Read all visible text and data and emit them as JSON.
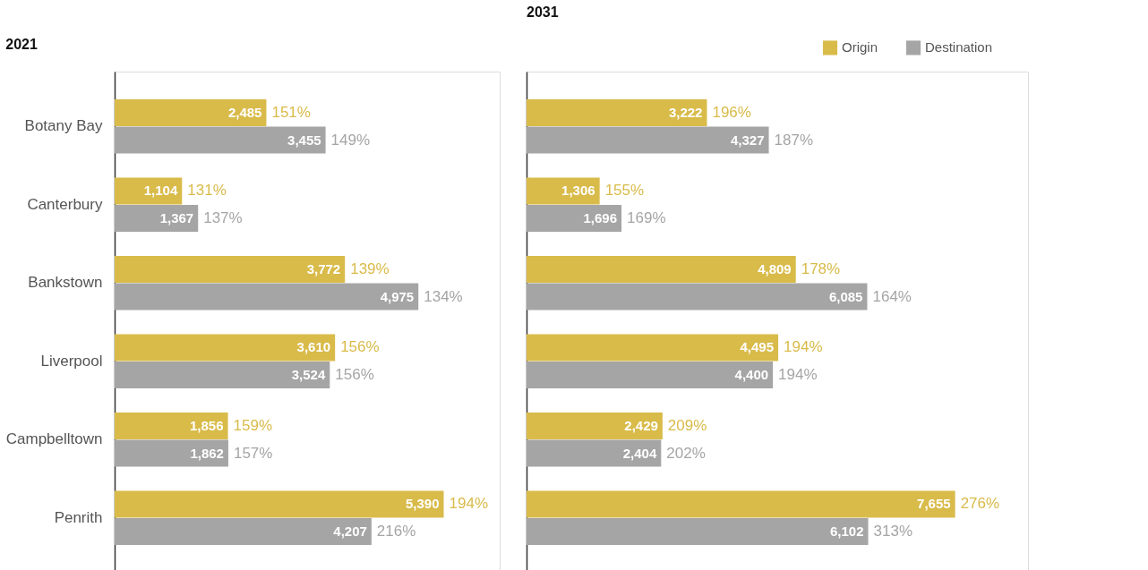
{
  "chart_data": [
    {
      "type": "bar",
      "orientation": "horizontal",
      "title": "2021",
      "categories": [
        "Botany Bay",
        "Canterbury",
        "Bankstown",
        "Liverpool",
        "Campbelltown",
        "Penrith"
      ],
      "series": [
        {
          "color": "#d9bb4a",
          "values": [
            2485,
            1104,
            3772,
            3610,
            1856,
            5390
          ],
          "value_labels": [
            "2,485",
            "1,104",
            "3,772",
            "3,610",
            "1,856",
            "5,390"
          ]
        },
        {
          "color": "#a5a5a5",
          "values": [
            3455,
            1367,
            4975,
            3524,
            1862,
            4207
          ],
          "value_labels": [
            "3,455",
            "1,367",
            "4,975",
            "3,524",
            "1,862",
            "4,207"
          ]
        }
      ],
      "annotations": [
        {
          "text": "151%",
          "x": 2485,
          "y": "Botany Bay"
        },
        {
          "text": "149%",
          "x": 3455,
          "y": "Botany Bay"
        },
        {
          "text": "131%",
          "x": 1104,
          "y": "Canterbury"
        },
        {
          "text": "137%",
          "x": 1367,
          "y": "Canterbury"
        },
        {
          "text": "139%",
          "x": 3772,
          "y": "Bankstown"
        },
        {
          "text": "134%",
          "x": 4975,
          "y": "Bankstown"
        },
        {
          "text": "156%",
          "x": 3610,
          "y": "Liverpool"
        },
        {
          "text": "156%",
          "x": 3524,
          "y": "Liverpool"
        },
        {
          "text": "159%",
          "x": 1856,
          "y": "Campbelltown"
        },
        {
          "text": "157%",
          "x": 1862,
          "y": "Campbelltown"
        },
        {
          "text": "194%",
          "x": 5390,
          "y": "Penrith"
        },
        {
          "text": "216%",
          "x": 4207,
          "y": "Penrith"
        }
      ],
      "tick_labels": "y",
      "grid": false,
      "legend": false
    },
    {
      "type": "bar",
      "orientation": "horizontal",
      "title": "2031",
      "categories": [
        "Botany Bay",
        "Canterbury",
        "Bankstown",
        "Liverpool",
        "Campbelltown",
        "Penrith"
      ],
      "series": [
        {
          "name": "Origin",
          "color": "#d9bb4a",
          "values": [
            3222,
            1306,
            4809,
            4495,
            2429,
            7655
          ],
          "value_labels": [
            "3,222",
            "1,306",
            "4,809",
            "4,495",
            "2,429",
            "7,655"
          ]
        },
        {
          "name": "Destination",
          "color": "#a5a5a5",
          "values": [
            4327,
            1696,
            6085,
            4400,
            2404,
            6102
          ],
          "value_labels": [
            "4,327",
            "1,696",
            "6,085",
            "4,400",
            "2,404",
            "6,102"
          ]
        }
      ],
      "annotations": [
        {
          "text": "196%",
          "x": 3222,
          "y": "Botany Bay"
        },
        {
          "text": "187%",
          "x": 4327,
          "y": "Botany Bay"
        },
        {
          "text": "155%",
          "x": 1306,
          "y": "Canterbury"
        },
        {
          "text": "169%",
          "x": 1696,
          "y": "Canterbury"
        },
        {
          "text": "178%",
          "x": 4809,
          "y": "Bankstown"
        },
        {
          "text": "164%",
          "x": 6085,
          "y": "Bankstown"
        },
        {
          "text": "194%",
          "x": 4495,
          "y": "Liverpool"
        },
        {
          "text": "194%",
          "x": 4400,
          "y": "Liverpool"
        },
        {
          "text": "209%",
          "x": 2429,
          "y": "Campbelltown"
        },
        {
          "text": "202%",
          "x": 2404,
          "y": "Campbelltown"
        },
        {
          "text": "276%",
          "x": 7655,
          "y": "Penrith"
        },
        {
          "text": "313%",
          "x": 6102,
          "y": "Penrith"
        }
      ],
      "tick_labels": false,
      "grid": false,
      "legend": "top right"
    }
  ]
}
